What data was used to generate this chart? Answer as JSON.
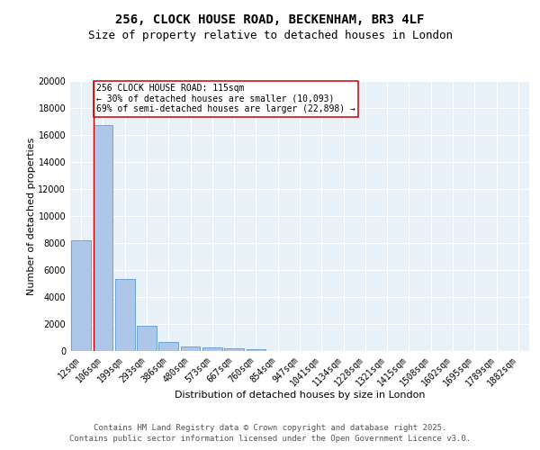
{
  "title1": "256, CLOCK HOUSE ROAD, BECKENHAM, BR3 4LF",
  "title2": "Size of property relative to detached houses in London",
  "xlabel": "Distribution of detached houses by size in London",
  "ylabel": "Number of detached properties",
  "categories": [
    "12sqm",
    "106sqm",
    "199sqm",
    "293sqm",
    "386sqm",
    "480sqm",
    "573sqm",
    "667sqm",
    "760sqm",
    "854sqm",
    "947sqm",
    "1041sqm",
    "1134sqm",
    "1228sqm",
    "1321sqm",
    "1415sqm",
    "1508sqm",
    "1602sqm",
    "1695sqm",
    "1789sqm",
    "1882sqm"
  ],
  "values": [
    8200,
    16700,
    5350,
    1850,
    650,
    330,
    265,
    200,
    160,
    0,
    0,
    0,
    0,
    0,
    0,
    0,
    0,
    0,
    0,
    0,
    0
  ],
  "bar_color": "#aec6e8",
  "bar_edge_color": "#5b9bd5",
  "bg_color": "#e8f0f8",
  "annotation_box_text": "256 CLOCK HOUSE ROAD: 115sqm\n← 30% of detached houses are smaller (10,093)\n69% of semi-detached houses are larger (22,898) →",
  "vline_color": "#cc0000",
  "annotation_box_color": "#cc0000",
  "ylim": [
    0,
    20000
  ],
  "yticks": [
    0,
    2000,
    4000,
    6000,
    8000,
    10000,
    12000,
    14000,
    16000,
    18000,
    20000
  ],
  "footer1": "Contains HM Land Registry data © Crown copyright and database right 2025.",
  "footer2": "Contains public sector information licensed under the Open Government Licence v3.0.",
  "title_fontsize": 10,
  "subtitle_fontsize": 9,
  "axis_label_fontsize": 8,
  "tick_fontsize": 7,
  "annotation_fontsize": 7,
  "footer_fontsize": 6.5
}
